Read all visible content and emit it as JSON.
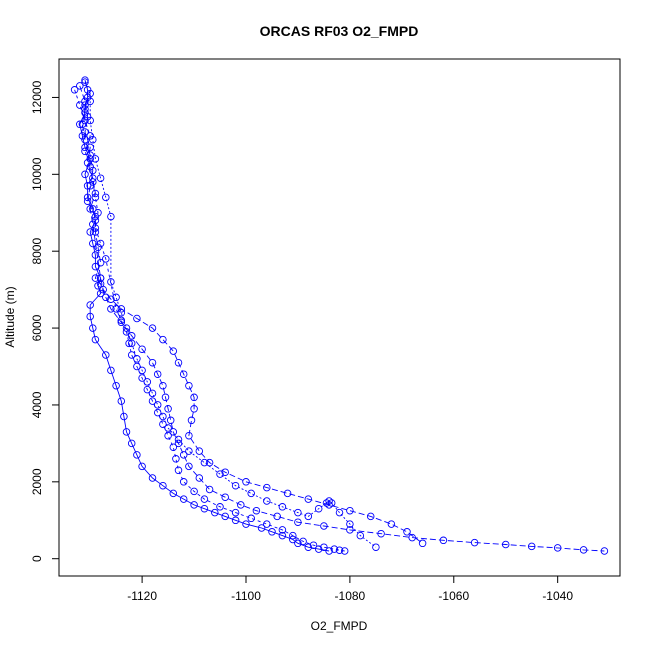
{
  "chart_data": {
    "type": "scatter",
    "title": "ORCAS RF03 O2_FMPD",
    "xlabel": "O2_FMPD",
    "ylabel": "Altitude (m)",
    "xlim": [
      -1136,
      -1028
    ],
    "ylim": [
      -450,
      13000
    ],
    "x_ticks": [
      -1120,
      -1100,
      -1080,
      -1060,
      -1040
    ],
    "y_ticks": [
      0,
      2000,
      4000,
      6000,
      8000,
      10000,
      12000
    ],
    "x_tick_labels": [
      "-1120",
      "-1100",
      "-1080",
      "-1060",
      "-1040"
    ],
    "y_tick_labels": [
      "0",
      "2000",
      "4000",
      "6000",
      "8000",
      "10000",
      "12000"
    ],
    "series_color": "#0000ff",
    "grid": false,
    "legend": "none",
    "series": [
      {
        "x": [
          -1131,
          -1130.5,
          -1130.5,
          -1131,
          -1131,
          -1132,
          -1131.5,
          -1131,
          -1130,
          -1131,
          -1130.5,
          -1130.5,
          -1129.5,
          -1129,
          -1130,
          -1129.5,
          -1129,
          -1129,
          -1128,
          -1128.5,
          -1128,
          -1130,
          -1130,
          -1129.5,
          -1129,
          -1127,
          -1126,
          -1125,
          -1124,
          -1123.5,
          -1123,
          -1122,
          -1121,
          -1120,
          -1118,
          -1116,
          -1114,
          -1112,
          -1110,
          -1108,
          -1106,
          -1104,
          -1102,
          -1100,
          -1097,
          -1095,
          -1093,
          -1091,
          -1090,
          -1088,
          -1086,
          -1084
        ],
        "y": [
          12450,
          12200,
          12000,
          11800,
          11600,
          11300,
          11000,
          10700,
          10400,
          10000,
          9700,
          9400,
          9100,
          8800,
          8500,
          8200,
          7900,
          7600,
          7300,
          7100,
          6900,
          6600,
          6300,
          6000,
          5700,
          5300,
          4900,
          4500,
          4100,
          3700,
          3300,
          3000,
          2700,
          2400,
          2100,
          1900,
          1700,
          1550,
          1400,
          1300,
          1200,
          1100,
          1000,
          900,
          800,
          700,
          600,
          500,
          400,
          300,
          250,
          200
        ],
        "dash": "none"
      },
      {
        "x": [
          -1131,
          -1130,
          -1131,
          -1131.5,
          -1131,
          -1130,
          -1129.5,
          -1130,
          -1130.5,
          -1129,
          -1129,
          -1128.5,
          -1128,
          -1129,
          -1128,
          -1127,
          -1126,
          -1124,
          -1122,
          -1120,
          -1118,
          -1117,
          -1116,
          -1115.5,
          -1115,
          -1114.5,
          -1114,
          -1113,
          -1112,
          -1111,
          -1109,
          -1107,
          -1104,
          -1101,
          -1098,
          -1094,
          -1090,
          -1085,
          -1080,
          -1074,
          -1068,
          -1062,
          -1056,
          -1050,
          -1045,
          -1040,
          -1035,
          -1031
        ],
        "y": [
          12400,
          12100,
          11700,
          11300,
          10900,
          10500,
          10100,
          9700,
          9300,
          8900,
          8500,
          8100,
          7700,
          7300,
          7150,
          6800,
          6500,
          6150,
          5800,
          5450,
          5100,
          4800,
          4500,
          4200,
          3900,
          3600,
          3300,
          3000,
          2700,
          2400,
          2100,
          1800,
          1600,
          1400,
          1250,
          1100,
          950,
          850,
          750,
          650,
          550,
          480,
          420,
          370,
          320,
          280,
          230,
          200
        ],
        "dash": "6,3"
      },
      {
        "x": [
          -1132,
          -1131,
          -1130.5,
          -1131,
          -1130,
          -1130.5,
          -1129.5,
          -1129,
          -1130,
          -1129.5,
          -1128,
          -1127.5,
          -1126,
          -1124,
          -1121,
          -1118,
          -1116,
          -1114,
          -1113,
          -1112,
          -1111,
          -1110,
          -1110,
          -1110.5,
          -1111,
          -1109,
          -1107,
          -1104,
          -1100,
          -1096,
          -1092,
          -1088,
          -1084,
          -1080,
          -1076,
          -1072,
          -1069,
          -1066
        ],
        "y": [
          12300,
          11900,
          11500,
          11100,
          10700,
          10300,
          9900,
          9500,
          9100,
          8700,
          7300,
          7000,
          6750,
          6500,
          6250,
          6000,
          5700,
          5400,
          5100,
          4800,
          4500,
          4200,
          3900,
          3600,
          3200,
          2800,
          2500,
          2250,
          2000,
          1850,
          1700,
          1550,
          1400,
          1250,
          1100,
          900,
          700,
          400
        ],
        "dash": "6,3"
      },
      {
        "x": [
          -1133,
          -1132,
          -1131,
          -1130,
          -1131,
          -1130,
          -1129.5,
          -1129,
          -1128.5,
          -1129,
          -1128,
          -1127,
          -1125,
          -1124,
          -1123,
          -1122.5,
          -1122,
          -1121,
          -1120,
          -1119,
          -1118,
          -1117,
          -1116,
          -1115,
          -1114,
          -1113.5,
          -1113,
          -1112,
          -1110,
          -1108,
          -1105,
          -1102,
          -1099,
          -1096,
          -1093,
          -1091,
          -1089,
          -1087,
          -1085,
          -1083,
          -1082,
          -1081
        ],
        "y": [
          12200,
          11800,
          11400,
          11000,
          10600,
          10200,
          9800,
          9400,
          9000,
          8600,
          8200,
          7800,
          6500,
          6200,
          5900,
          5600,
          5300,
          5000,
          4700,
          4400,
          4100,
          3800,
          3500,
          3200,
          2900,
          2600,
          2300,
          2000,
          1750,
          1550,
          1350,
          1200,
          1050,
          900,
          750,
          600,
          450,
          350,
          300,
          250,
          220,
          200
        ],
        "dash": "3,3"
      },
      {
        "x": [
          -1130,
          -1130,
          -1129.5,
          -1129,
          -1128,
          -1127,
          -1126,
          -1126,
          -1125,
          -1124,
          -1123,
          -1122,
          -1121,
          -1120,
          -1119,
          -1118,
          -1117,
          -1116,
          -1115,
          -1113,
          -1111,
          -1108,
          -1105,
          -1102,
          -1099,
          -1096,
          -1093,
          -1090,
          -1088,
          -1086,
          -1084.5,
          -1084,
          -1083.5,
          -1082,
          -1080,
          -1078,
          -1075
        ],
        "y": [
          11900,
          11400,
          10900,
          10400,
          9900,
          9400,
          8900,
          7200,
          6800,
          6400,
          6000,
          5600,
          5200,
          4900,
          4600,
          4300,
          4000,
          3700,
          3400,
          3100,
          2800,
          2500,
          2200,
          1900,
          1700,
          1500,
          1350,
          1200,
          1100,
          1300,
          1450,
          1500,
          1450,
          1200,
          900,
          600,
          300
        ],
        "dash": "2,2"
      }
    ]
  }
}
